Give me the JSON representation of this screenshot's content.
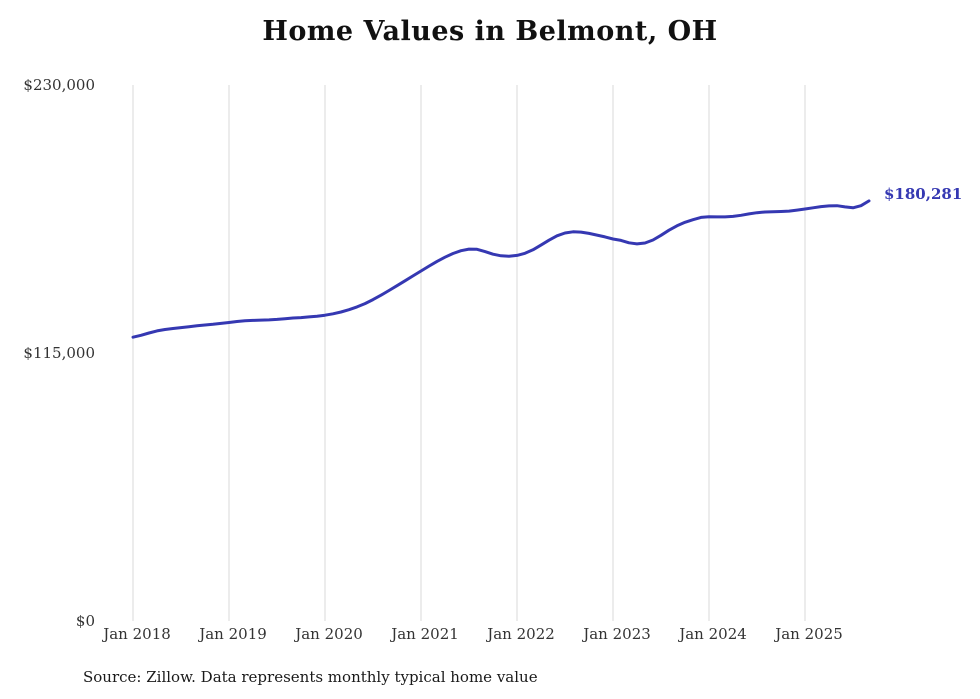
{
  "title": "Home Values in Belmont, OH",
  "source_note": "Source: Zillow. Data represents monthly typical home value",
  "end_label": "$180,281",
  "chart_data": {
    "type": "line",
    "title": "Home Values in Belmont, OH",
    "x_start": "2018-01",
    "x_frequency": "monthly",
    "x_tick_labels": [
      "Jan 2018",
      "Jan 2019",
      "Jan 2020",
      "Jan 2021",
      "Jan 2022",
      "Jan 2023",
      "Jan 2024",
      "Jan 2025"
    ],
    "y_ticks": [
      {
        "label": "$0",
        "value": 0
      },
      {
        "label": "$115,000",
        "value": 115000
      },
      {
        "label": "$230,000",
        "value": 230000
      }
    ],
    "ylim": [
      0,
      230000
    ],
    "grid": "vertical-only",
    "legend": "none",
    "line_color": "#3538b2",
    "grid_color": "#d8d8d8",
    "final_value": 180281,
    "final_value_label": "$180,281",
    "series": [
      {
        "name": "Typical home value",
        "values": [
          121800,
          122600,
          123600,
          124500,
          125100,
          125500,
          125900,
          126300,
          126700,
          127000,
          127300,
          127700,
          128100,
          128500,
          128800,
          129000,
          129100,
          129200,
          129400,
          129700,
          130000,
          130200,
          130500,
          130800,
          131200,
          131800,
          132600,
          133600,
          134800,
          136200,
          137900,
          139800,
          141800,
          143900,
          146000,
          148100,
          150200,
          152300,
          154300,
          156100,
          157700,
          158900,
          159600,
          159500,
          158500,
          157400,
          156700,
          156500,
          156900,
          157800,
          159300,
          161300,
          163400,
          165300,
          166500,
          167000,
          166900,
          166300,
          165600,
          164800,
          163900,
          163300,
          162300,
          161800,
          162200,
          163500,
          165500,
          167700,
          169600,
          171100,
          172200,
          173200,
          173500,
          173400,
          173400,
          173600,
          174100,
          174700,
          175200,
          175500,
          175600,
          175700,
          175900,
          176300,
          176800,
          177300,
          177800,
          178100,
          178200,
          177700,
          177300,
          178200,
          180281
        ]
      }
    ]
  }
}
